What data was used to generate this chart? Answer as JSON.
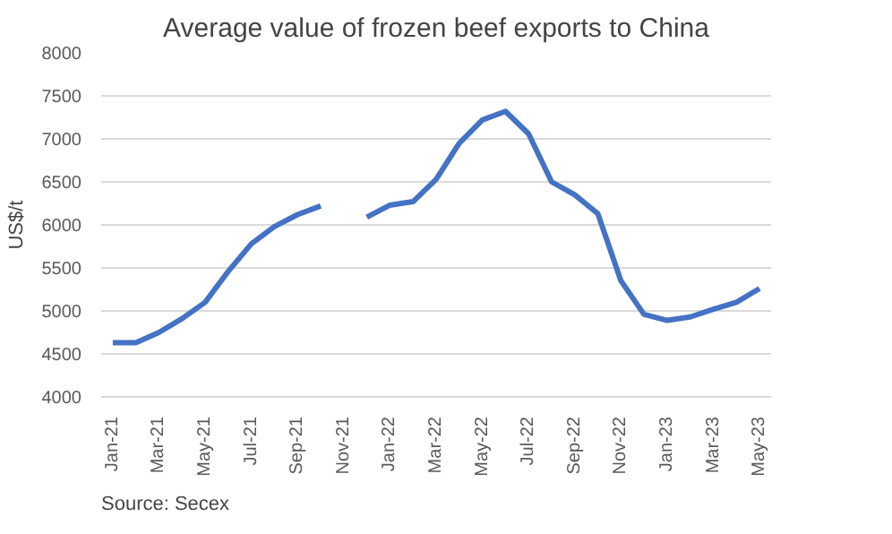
{
  "chart_data": {
    "type": "line",
    "title": "Average value of frozen beef exports to China",
    "ylabel": "US$/t",
    "categories": [
      "Jan-21",
      null,
      "Mar-21",
      null,
      "May-21",
      null,
      "Jul-21",
      null,
      "Sep-21",
      null,
      "Nov-21",
      null,
      "Jan-22",
      null,
      "Mar-22",
      null,
      "May-22",
      null,
      "Jul-22",
      null,
      "Sep-22",
      null,
      "Nov-22",
      null,
      "Jan-23",
      null,
      "Mar-23",
      null,
      "May-23"
    ],
    "series": [
      {
        "color": "#4472c4",
        "values": [
          4630,
          4630,
          4750,
          4910,
          5100,
          5460,
          5780,
          5980,
          6120,
          6220,
          null,
          6090,
          6230,
          6270,
          6530,
          6950,
          7220,
          7320,
          7060,
          6500,
          6350,
          6130,
          5350,
          4960,
          4890,
          4930,
          5020,
          5100,
          5260
        ]
      }
    ],
    "ylim": [
      4000,
      8000
    ],
    "yticks": [
      4000,
      4500,
      5000,
      5500,
      6000,
      6500,
      7000,
      7500,
      8000
    ],
    "grid": "y",
    "marker": "none",
    "line_style": "solid",
    "annotations": [
      "Source: Secex"
    ]
  }
}
